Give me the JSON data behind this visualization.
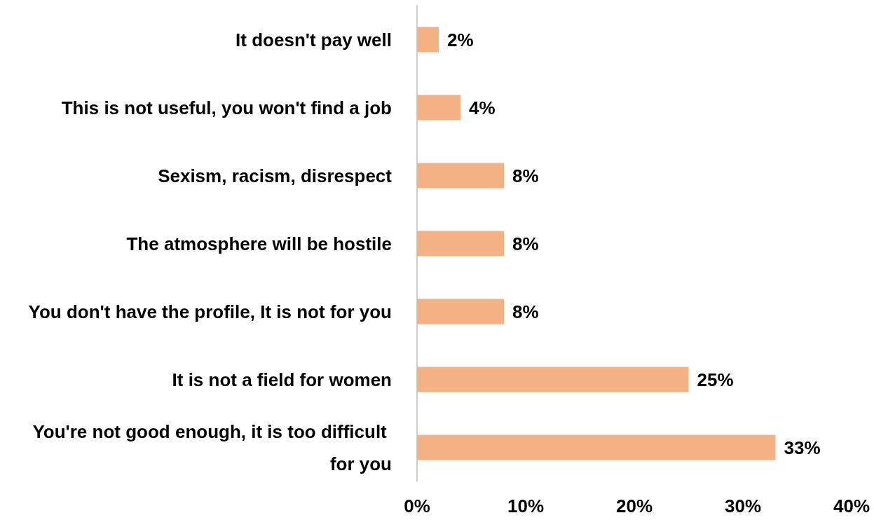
{
  "chart_data": {
    "type": "bar",
    "orientation": "horizontal",
    "categories": [
      "It doesn't pay well",
      "This is not useful, you won't find a job",
      "Sexism, racism, disrespect",
      "The atmosphere will be hostile",
      "You don't have the profile, It is not for you",
      "It is not a field for women",
      "You're not good enough, it is too difficult for you"
    ],
    "values": [
      2,
      4,
      8,
      8,
      8,
      25,
      33
    ],
    "value_labels": [
      "2%",
      "4%",
      "8%",
      "8%",
      "8%",
      "25%",
      "33%"
    ],
    "color": "#f4b183",
    "xlim": [
      0,
      40
    ],
    "xticks": [
      {
        "value": 0,
        "label": "0%"
      },
      {
        "value": 10,
        "label": "10%"
      },
      {
        "value": 20,
        "label": "20%"
      },
      {
        "value": 30,
        "label": "30%"
      },
      {
        "value": 40,
        "label": "40%"
      }
    ],
    "grid": false
  }
}
